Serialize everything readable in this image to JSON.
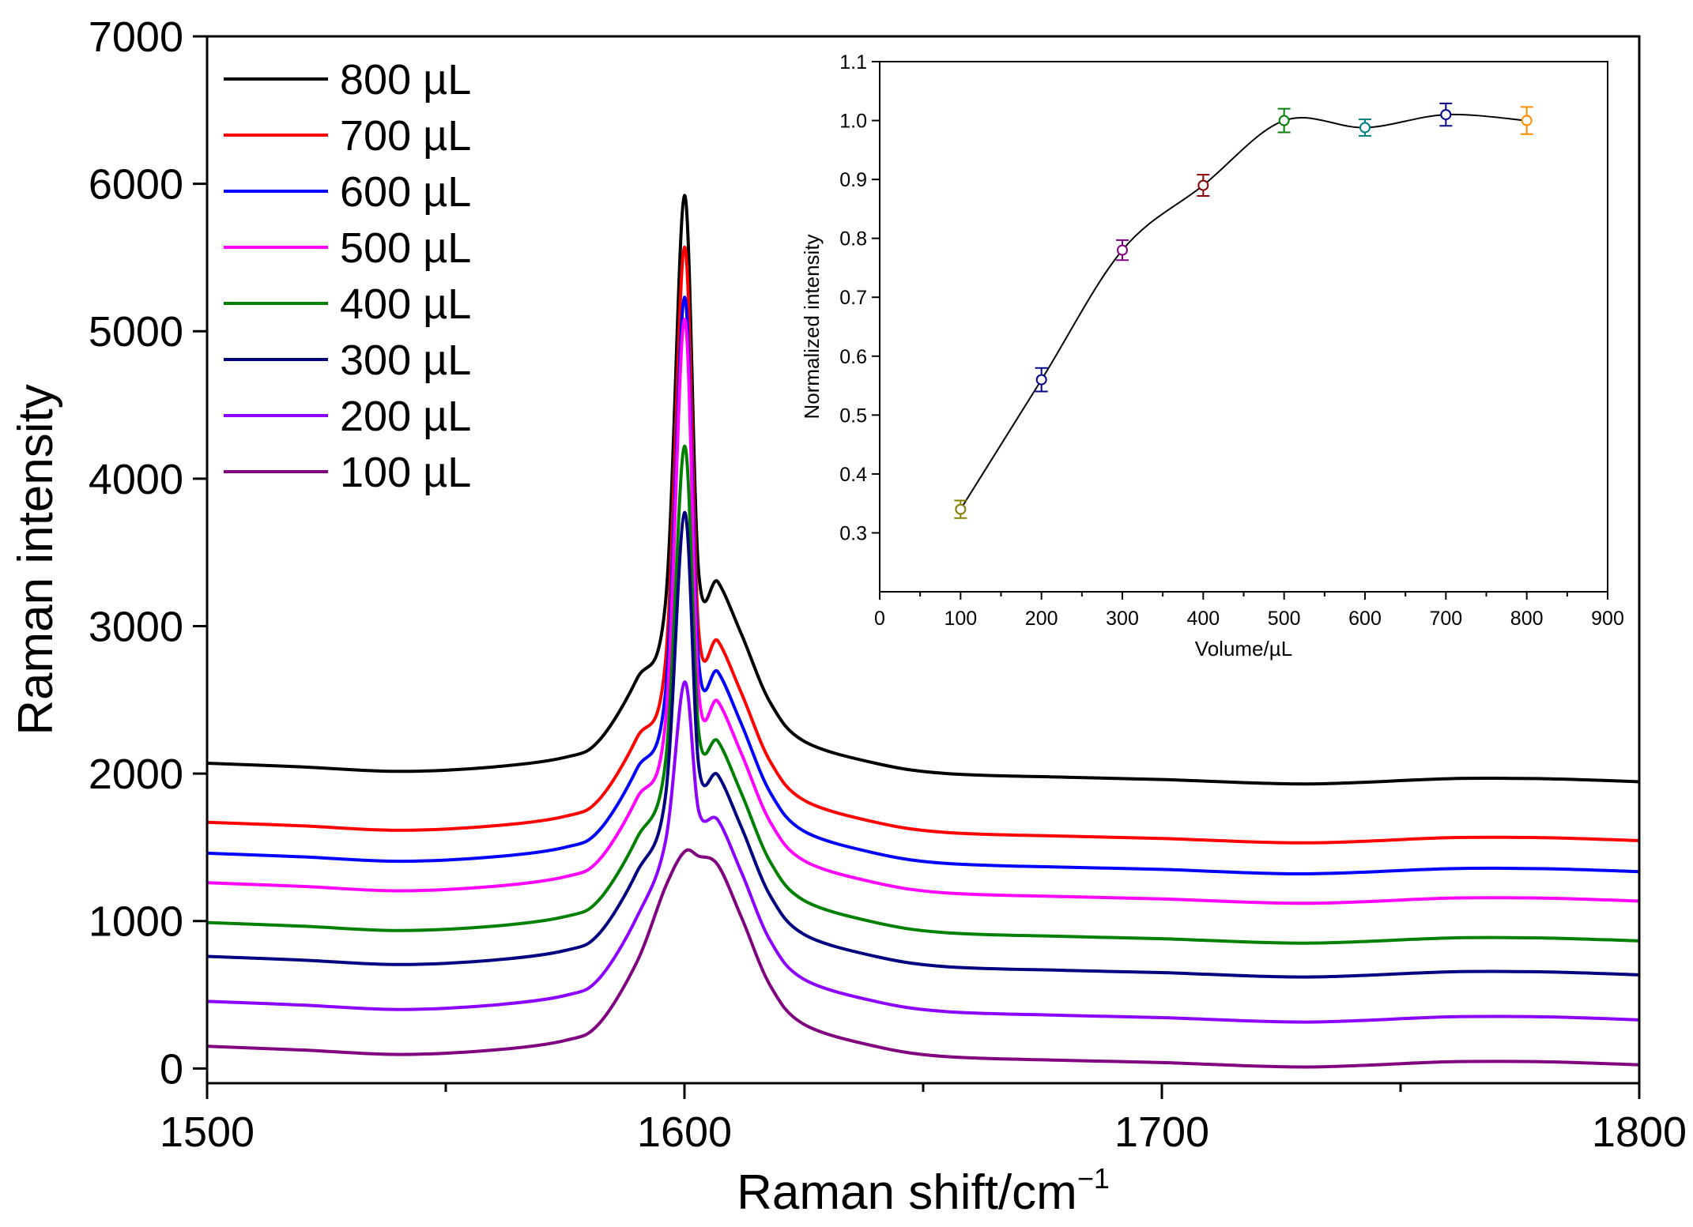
{
  "chart_data": [
    {
      "type": "line",
      "xlabel": "Raman shift/cm",
      "xlabel_sup": "−1",
      "ylabel": "Raman intensity",
      "xlim": [
        1500,
        1800
      ],
      "ylim": [
        -100,
        7000
      ],
      "x_ticks": [
        1500,
        1600,
        1700,
        1800
      ],
      "x_minor_ticks": [
        1550,
        1650,
        1750
      ],
      "y_ticks": [
        0,
        1000,
        2000,
        3000,
        4000,
        5000,
        6000,
        7000
      ],
      "legend_position": "top-left",
      "x": [
        1500,
        1520,
        1540,
        1560,
        1575,
        1582,
        1590,
        1596,
        1600,
        1603,
        1607,
        1612,
        1618,
        1625,
        1640,
        1655,
        1680,
        1700,
        1730,
        1760,
        1780,
        1800
      ],
      "base_profile": [
        150,
        125,
        95,
        125,
        190,
        300,
        720,
        1230,
        1470,
        1440,
        1380,
        1020,
        560,
        300,
        150,
        80,
        55,
        40,
        10,
        45,
        45,
        25
      ],
      "series": [
        {
          "name": "800 µL",
          "color": "#000000",
          "offset": 1920
        },
        {
          "name": "700 µL",
          "color": "#ff0000",
          "offset": 1520
        },
        {
          "name": "600 µL",
          "color": "#0000ff",
          "offset": 1310
        },
        {
          "name": "500 µL",
          "color": "#ff00ff",
          "offset": 1110
        },
        {
          "name": "400 µL",
          "color": "#008000",
          "offset": 840
        },
        {
          "name": "300 µL",
          "color": "#000080",
          "offset": 610
        },
        {
          "name": "200 µL",
          "color": "#8b00ff",
          "offset": 305
        },
        {
          "name": "100 µL",
          "color": "#800080",
          "offset": 0
        }
      ],
      "peak_values": [
        5920,
        5570,
        5230,
        5080,
        4220,
        3770,
        2620,
        1470
      ]
    },
    {
      "type": "scatter",
      "role": "inset",
      "xlabel": "Volume/µL",
      "ylabel": "Normalized intensity",
      "xlim": [
        0,
        900
      ],
      "ylim": [
        0.2,
        1.1
      ],
      "x_ticks": [
        0,
        100,
        200,
        300,
        400,
        500,
        600,
        700,
        800,
        900
      ],
      "y_ticks": [
        0.3,
        0.4,
        0.5,
        0.6,
        0.7,
        0.8,
        0.9,
        1.0,
        1.1
      ],
      "y_tick_labels": [
        "0.3",
        "0.4",
        "0.5",
        "0.6",
        "0.7",
        "0.8",
        "0.9",
        "1.0",
        "1.1"
      ],
      "points": [
        {
          "x": 100,
          "y": 0.34,
          "err": 0.015,
          "color": "#808000"
        },
        {
          "x": 200,
          "y": 0.56,
          "err": 0.02,
          "color": "#00008b"
        },
        {
          "x": 300,
          "y": 0.78,
          "err": 0.017,
          "color": "#800080"
        },
        {
          "x": 400,
          "y": 0.89,
          "err": 0.018,
          "color": "#8b0000"
        },
        {
          "x": 500,
          "y": 1.0,
          "err": 0.02,
          "color": "#008000"
        },
        {
          "x": 600,
          "y": 0.988,
          "err": 0.014,
          "color": "#008080"
        },
        {
          "x": 700,
          "y": 1.01,
          "err": 0.019,
          "color": "#00008b"
        },
        {
          "x": 800,
          "y": 1.0,
          "err": 0.023,
          "color": "#ff8c00"
        }
      ],
      "fit_line_color": "#000000"
    }
  ]
}
